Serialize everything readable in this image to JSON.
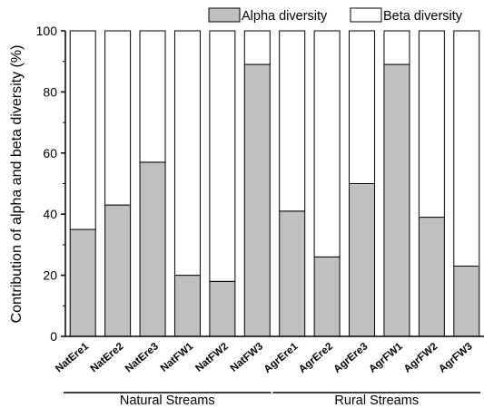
{
  "chart_data": {
    "type": "bar",
    "stacked": true,
    "categories": [
      "NatEre1",
      "NatEre2",
      "NatEre3",
      "NatFW1",
      "NatFW2",
      "NatFW3",
      "AgrEre1",
      "AgrEre2",
      "AgrEre3",
      "AgrFW1",
      "AgrFW2",
      "AgrFW3"
    ],
    "series": [
      {
        "name": "Alpha diversity",
        "color": "#c0c0c0",
        "values": [
          35,
          43,
          57,
          20,
          18,
          89,
          41,
          26,
          50,
          89,
          39,
          23
        ]
      },
      {
        "name": "Beta diversity",
        "color": "#ffffff",
        "values": [
          65,
          57,
          43,
          80,
          82,
          11,
          59,
          74,
          50,
          11,
          61,
          77
        ]
      }
    ],
    "title": "",
    "xlabel": "",
    "ylabel": "Contribution of alpha and beta diversity (%)",
    "ylim": [
      0,
      100
    ],
    "yticks": [
      0,
      20,
      40,
      60,
      80,
      100
    ],
    "grid": false,
    "legend_position": "top-right",
    "groups": [
      {
        "label": "Natural Streams",
        "from": 0,
        "to": 5
      },
      {
        "label": "Rural Streams",
        "from": 6,
        "to": 11
      }
    ]
  }
}
